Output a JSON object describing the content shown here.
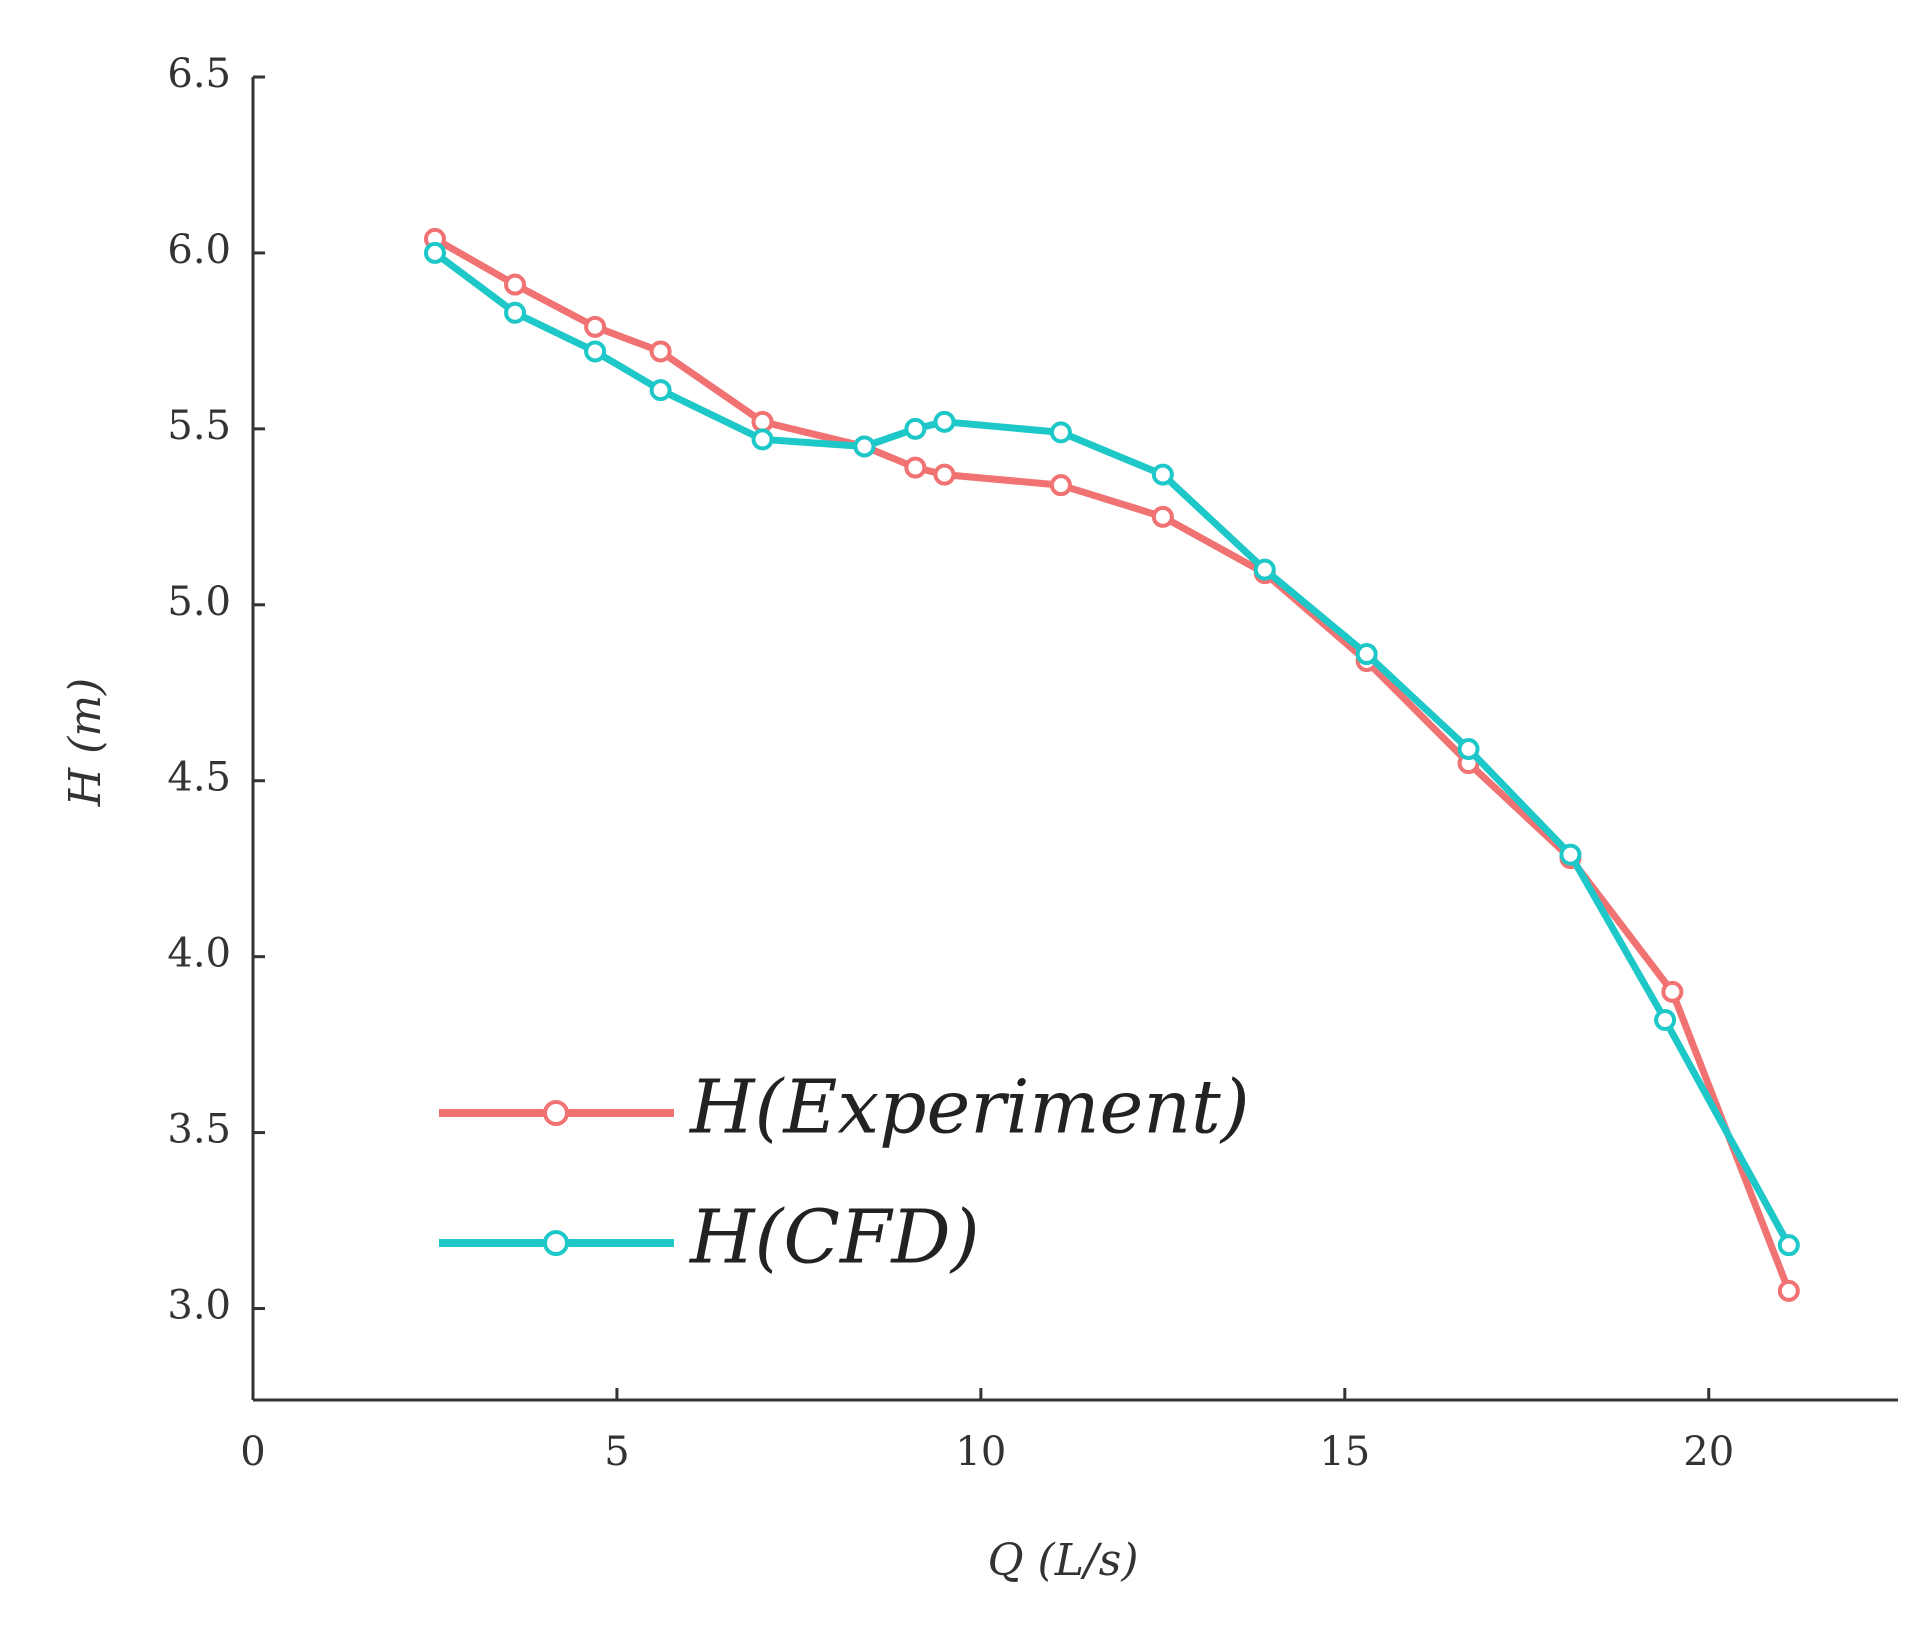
{
  "chart_data": {
    "type": "line",
    "xlabel": "Q (L/s)",
    "ylabel": "H (m)",
    "xlim": [
      0,
      22.6
    ],
    "ylim": [
      2.74,
      6.5
    ],
    "xticks": [
      0,
      5,
      10,
      15,
      20
    ],
    "yticks": [
      {
        "value": 3,
        "label": "3.0"
      },
      3.5,
      {
        "value": 4,
        "label": "4.0"
      },
      4.5,
      {
        "value": 5,
        "label": "5.0"
      },
      5.5,
      {
        "value": 6,
        "label": "6.0"
      },
      6.5
    ],
    "legend": "lower left",
    "series": [
      {
        "name": "H(Experiment)",
        "color": "#f07272",
        "x": [
          2.5,
          3.6,
          4.7,
          5.6,
          7.0,
          8.4,
          9.1,
          9.5,
          11.1,
          12.5,
          13.9,
          15.3,
          16.7,
          18.1,
          19.5,
          21.1
        ],
        "values": [
          6.04,
          5.91,
          5.79,
          5.72,
          5.52,
          5.45,
          5.39,
          5.37,
          5.34,
          5.25,
          5.09,
          4.84,
          4.55,
          4.28,
          3.9,
          3.05
        ]
      },
      {
        "name": "H(CFD)",
        "color": "#1fc8c8",
        "x": [
          2.5,
          3.6,
          4.7,
          5.6,
          7.0,
          8.4,
          9.1,
          9.5,
          11.1,
          12.5,
          13.9,
          15.3,
          16.7,
          18.1,
          19.4,
          21.1
        ],
        "values": [
          6.0,
          5.83,
          5.72,
          5.61,
          5.47,
          5.45,
          5.5,
          5.52,
          5.49,
          5.37,
          5.1,
          4.86,
          4.59,
          4.29,
          3.82,
          3.18
        ]
      }
    ]
  }
}
